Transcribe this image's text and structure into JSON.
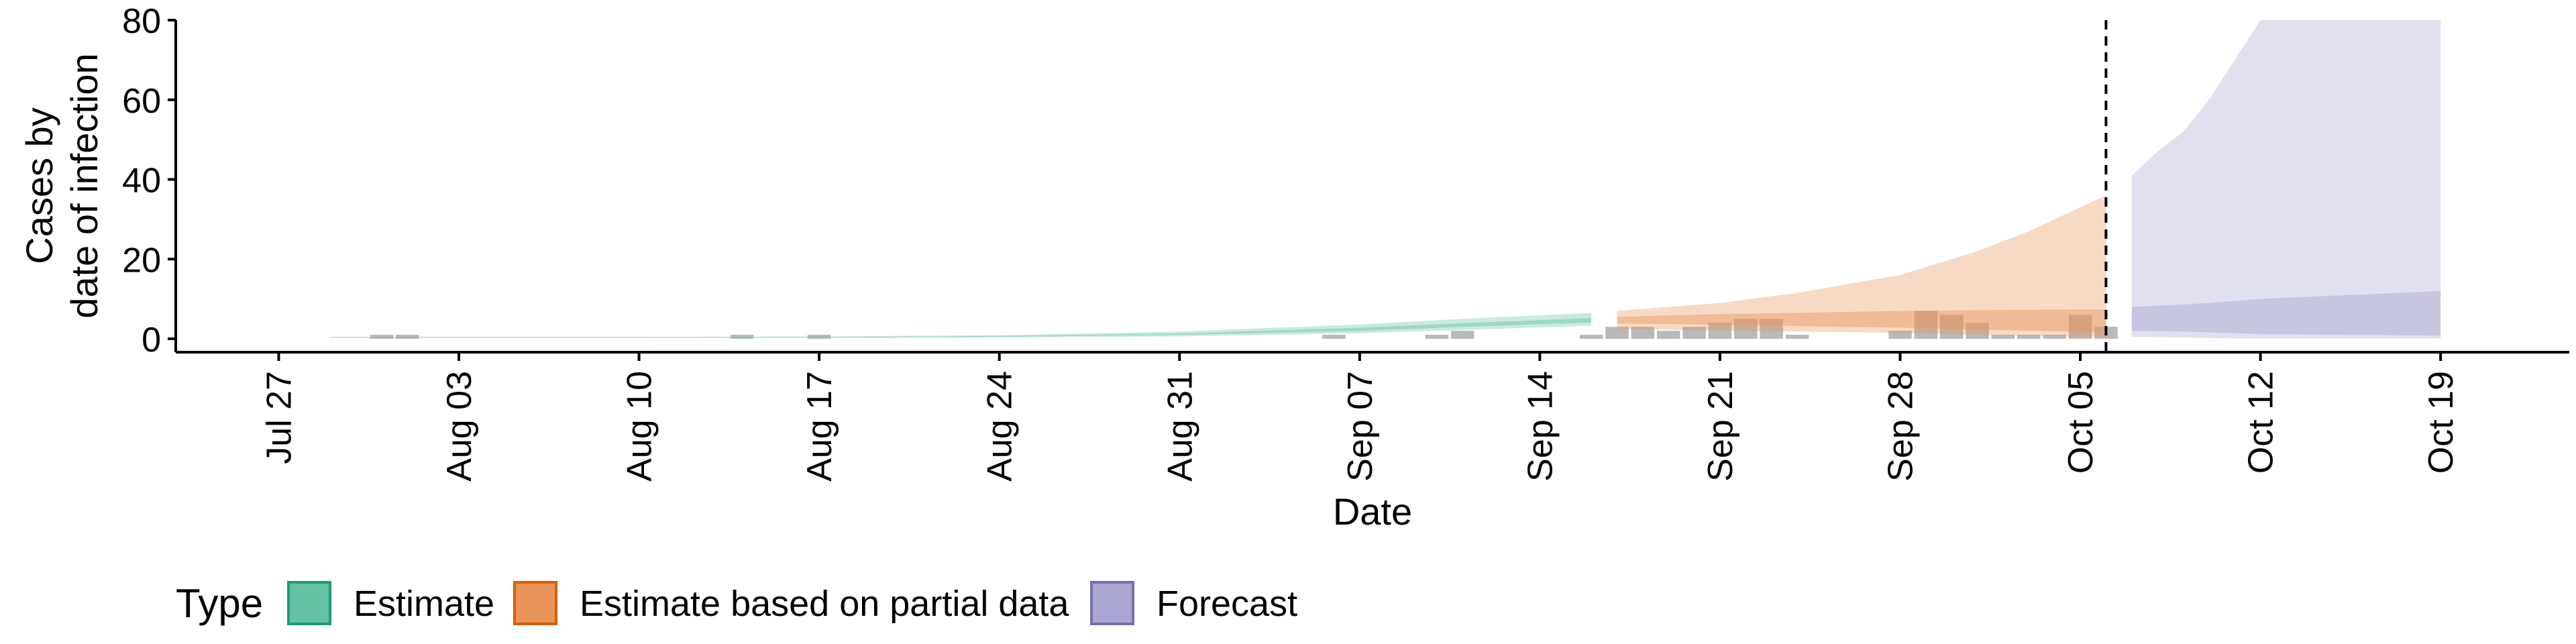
{
  "chart_data": {
    "type": "area",
    "title": "",
    "xlabel": "Date",
    "ylabel_lines": [
      "Cases by",
      "date of infection"
    ],
    "ylim": [
      0,
      80
    ],
    "xlim": [
      "2020-07-23",
      "2020-10-24"
    ],
    "yticks": [
      0,
      20,
      40,
      60,
      80
    ],
    "xticks": [
      {
        "date": "2020-07-27",
        "label": "Jul 27"
      },
      {
        "date": "2020-08-03",
        "label": "Aug 03"
      },
      {
        "date": "2020-08-10",
        "label": "Aug 10"
      },
      {
        "date": "2020-08-17",
        "label": "Aug 17"
      },
      {
        "date": "2020-08-24",
        "label": "Aug 24"
      },
      {
        "date": "2020-08-31",
        "label": "Aug 31"
      },
      {
        "date": "2020-09-07",
        "label": "Sep 07"
      },
      {
        "date": "2020-09-14",
        "label": "Sep 14"
      },
      {
        "date": "2020-09-21",
        "label": "Sep 21"
      },
      {
        "date": "2020-09-28",
        "label": "Sep 28"
      },
      {
        "date": "2020-10-05",
        "label": "Oct 05"
      },
      {
        "date": "2020-10-12",
        "label": "Oct 12"
      },
      {
        "date": "2020-10-19",
        "label": "Oct 19"
      }
    ],
    "forecast_cutoff": "2020-10-06",
    "grid": false,
    "legend": {
      "title": "Type",
      "placement": "bottom",
      "entries": [
        {
          "label": "Estimate",
          "fill": "#66c2a5",
          "stroke": "#1b9e77"
        },
        {
          "label": "Estimate based on partial data",
          "fill": "#e8945a",
          "stroke": "#d95f02"
        },
        {
          "label": "Forecast",
          "fill": "#a9a6d1",
          "stroke": "#7570b3"
        }
      ]
    },
    "reported_cases": [
      {
        "date": "2020-07-31",
        "value": 1
      },
      {
        "date": "2020-08-01",
        "value": 1
      },
      {
        "date": "2020-08-14",
        "value": 1
      },
      {
        "date": "2020-08-17",
        "value": 1
      },
      {
        "date": "2020-09-06",
        "value": 1
      },
      {
        "date": "2020-09-10",
        "value": 1
      },
      {
        "date": "2020-09-11",
        "value": 2
      },
      {
        "date": "2020-09-16",
        "value": 1
      },
      {
        "date": "2020-09-17",
        "value": 3
      },
      {
        "date": "2020-09-18",
        "value": 3
      },
      {
        "date": "2020-09-19",
        "value": 2
      },
      {
        "date": "2020-09-20",
        "value": 3
      },
      {
        "date": "2020-09-21",
        "value": 4
      },
      {
        "date": "2020-09-22",
        "value": 5
      },
      {
        "date": "2020-09-23",
        "value": 5
      },
      {
        "date": "2020-09-24",
        "value": 1
      },
      {
        "date": "2020-09-28",
        "value": 2
      },
      {
        "date": "2020-09-29",
        "value": 7
      },
      {
        "date": "2020-09-30",
        "value": 6
      },
      {
        "date": "2020-10-01",
        "value": 4
      },
      {
        "date": "2020-10-02",
        "value": 1
      },
      {
        "date": "2020-10-03",
        "value": 1
      },
      {
        "date": "2020-10-04",
        "value": 1
      },
      {
        "date": "2020-10-05",
        "value": 6
      },
      {
        "date": "2020-10-06",
        "value": 3
      }
    ],
    "series": [
      {
        "name": "Estimate",
        "color": "#66c2a5",
        "x": [
          "2020-07-29",
          "2020-08-03",
          "2020-08-10",
          "2020-08-17",
          "2020-08-24",
          "2020-08-31",
          "2020-09-07",
          "2020-09-11",
          "2020-09-16"
        ],
        "outer_upper": [
          0.5,
          0.5,
          0.5,
          0.6,
          0.9,
          1.8,
          3.6,
          5.0,
          6.5
        ],
        "outer_lower": [
          0.2,
          0.2,
          0.2,
          0.2,
          0.3,
          0.6,
          1.4,
          2.2,
          3.3
        ],
        "inner_upper": [
          0.4,
          0.4,
          0.4,
          0.4,
          0.7,
          1.3,
          2.8,
          3.9,
          5.2
        ],
        "inner_lower": [
          0.3,
          0.3,
          0.3,
          0.3,
          0.5,
          1.0,
          2.0,
          3.0,
          4.1
        ]
      },
      {
        "name": "Estimate based on partial data",
        "color": "#e8945a",
        "x": [
          "2020-09-17",
          "2020-09-21",
          "2020-09-24",
          "2020-09-28",
          "2020-10-01",
          "2020-10-03",
          "2020-10-06"
        ],
        "outer_upper": [
          7.0,
          9.0,
          11.5,
          16.0,
          22.0,
          27.0,
          36.0
        ],
        "outer_lower": [
          2.5,
          2.0,
          1.8,
          1.5,
          1.0,
          0.7,
          0.4
        ],
        "inner_upper": [
          5.5,
          6.2,
          6.5,
          7.0,
          7.2,
          7.3,
          7.4
        ],
        "inner_lower": [
          3.8,
          3.5,
          3.2,
          2.8,
          2.3,
          2.0,
          1.6
        ]
      },
      {
        "name": "Forecast",
        "color": "#a9a6d1",
        "x": [
          "2020-10-07",
          "2020-10-08",
          "2020-10-09",
          "2020-10-10",
          "2020-10-11",
          "2020-10-12",
          "2020-10-19"
        ],
        "outer_upper": [
          41,
          47,
          52,
          60,
          70,
          80,
          80
        ],
        "outer_lower": [
          0.5,
          0.4,
          0.3,
          0.2,
          0.1,
          0.1,
          0.1
        ],
        "inner_upper": [
          8.0,
          8.3,
          8.6,
          9.0,
          9.5,
          10.0,
          12.0
        ],
        "inner_lower": [
          2.0,
          1.9,
          1.8,
          1.6,
          1.4,
          1.2,
          0.8
        ]
      }
    ]
  }
}
